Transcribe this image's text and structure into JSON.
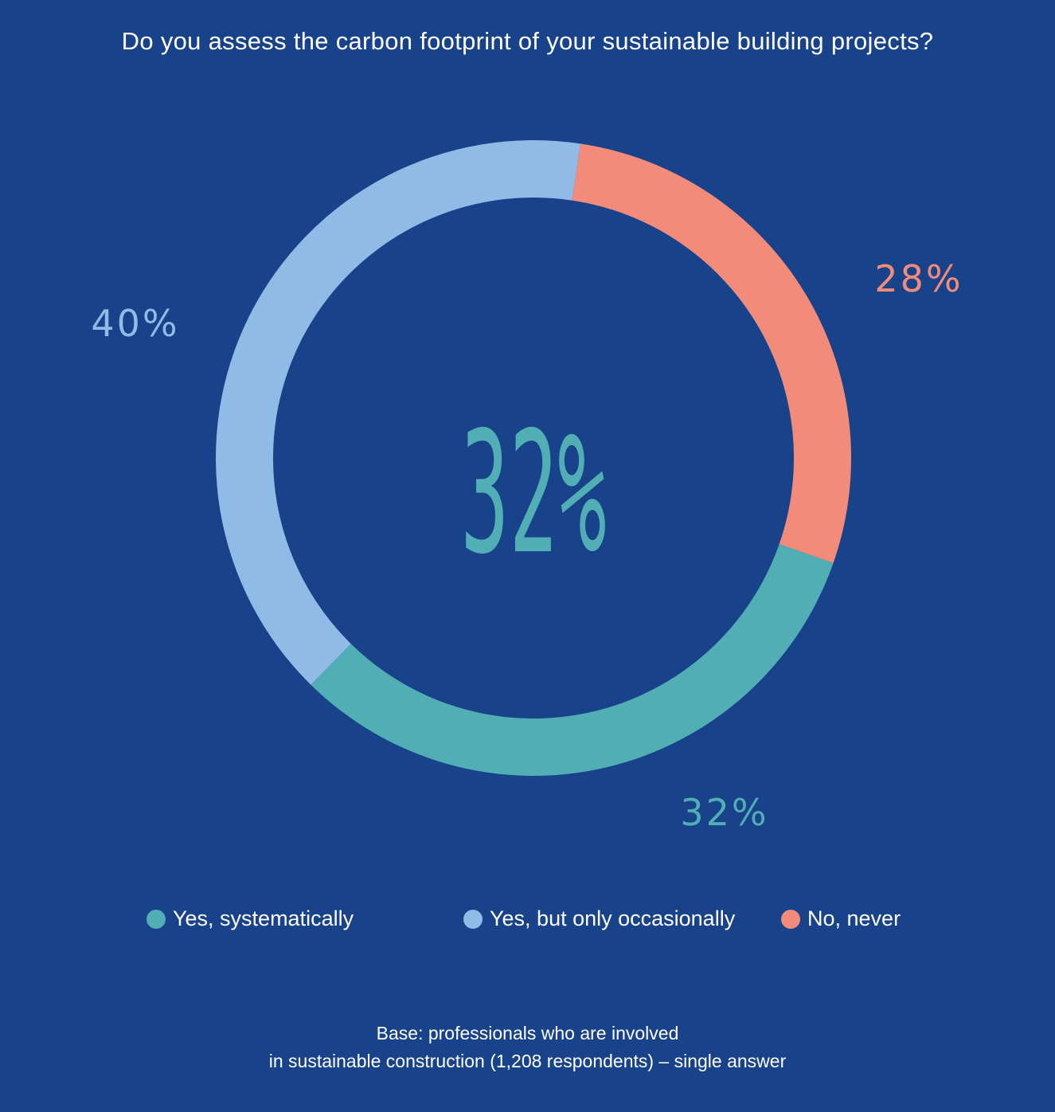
{
  "chart_data": {
    "type": "pie",
    "title": "Do you assess the carbon footprint of your sustainable building projects?",
    "center_label": "32%",
    "slices": [
      {
        "name": "Yes, systematically",
        "value": 32,
        "label": "32%",
        "color": "#51aeb5"
      },
      {
        "name": "Yes, but only occasionally",
        "value": 40,
        "label": "40%",
        "color": "#8fbbe6"
      },
      {
        "name": "No, never",
        "value": 28,
        "label": "28%",
        "color": "#f28b7a"
      }
    ],
    "legend_placement": "bottom"
  },
  "colors": {
    "background": "#18428a",
    "text": "#ffffff"
  },
  "footnote": {
    "line1": "Base: professionals who are involved",
    "line2": "in sustainable construction (1,208 respondents) – single answer"
  }
}
